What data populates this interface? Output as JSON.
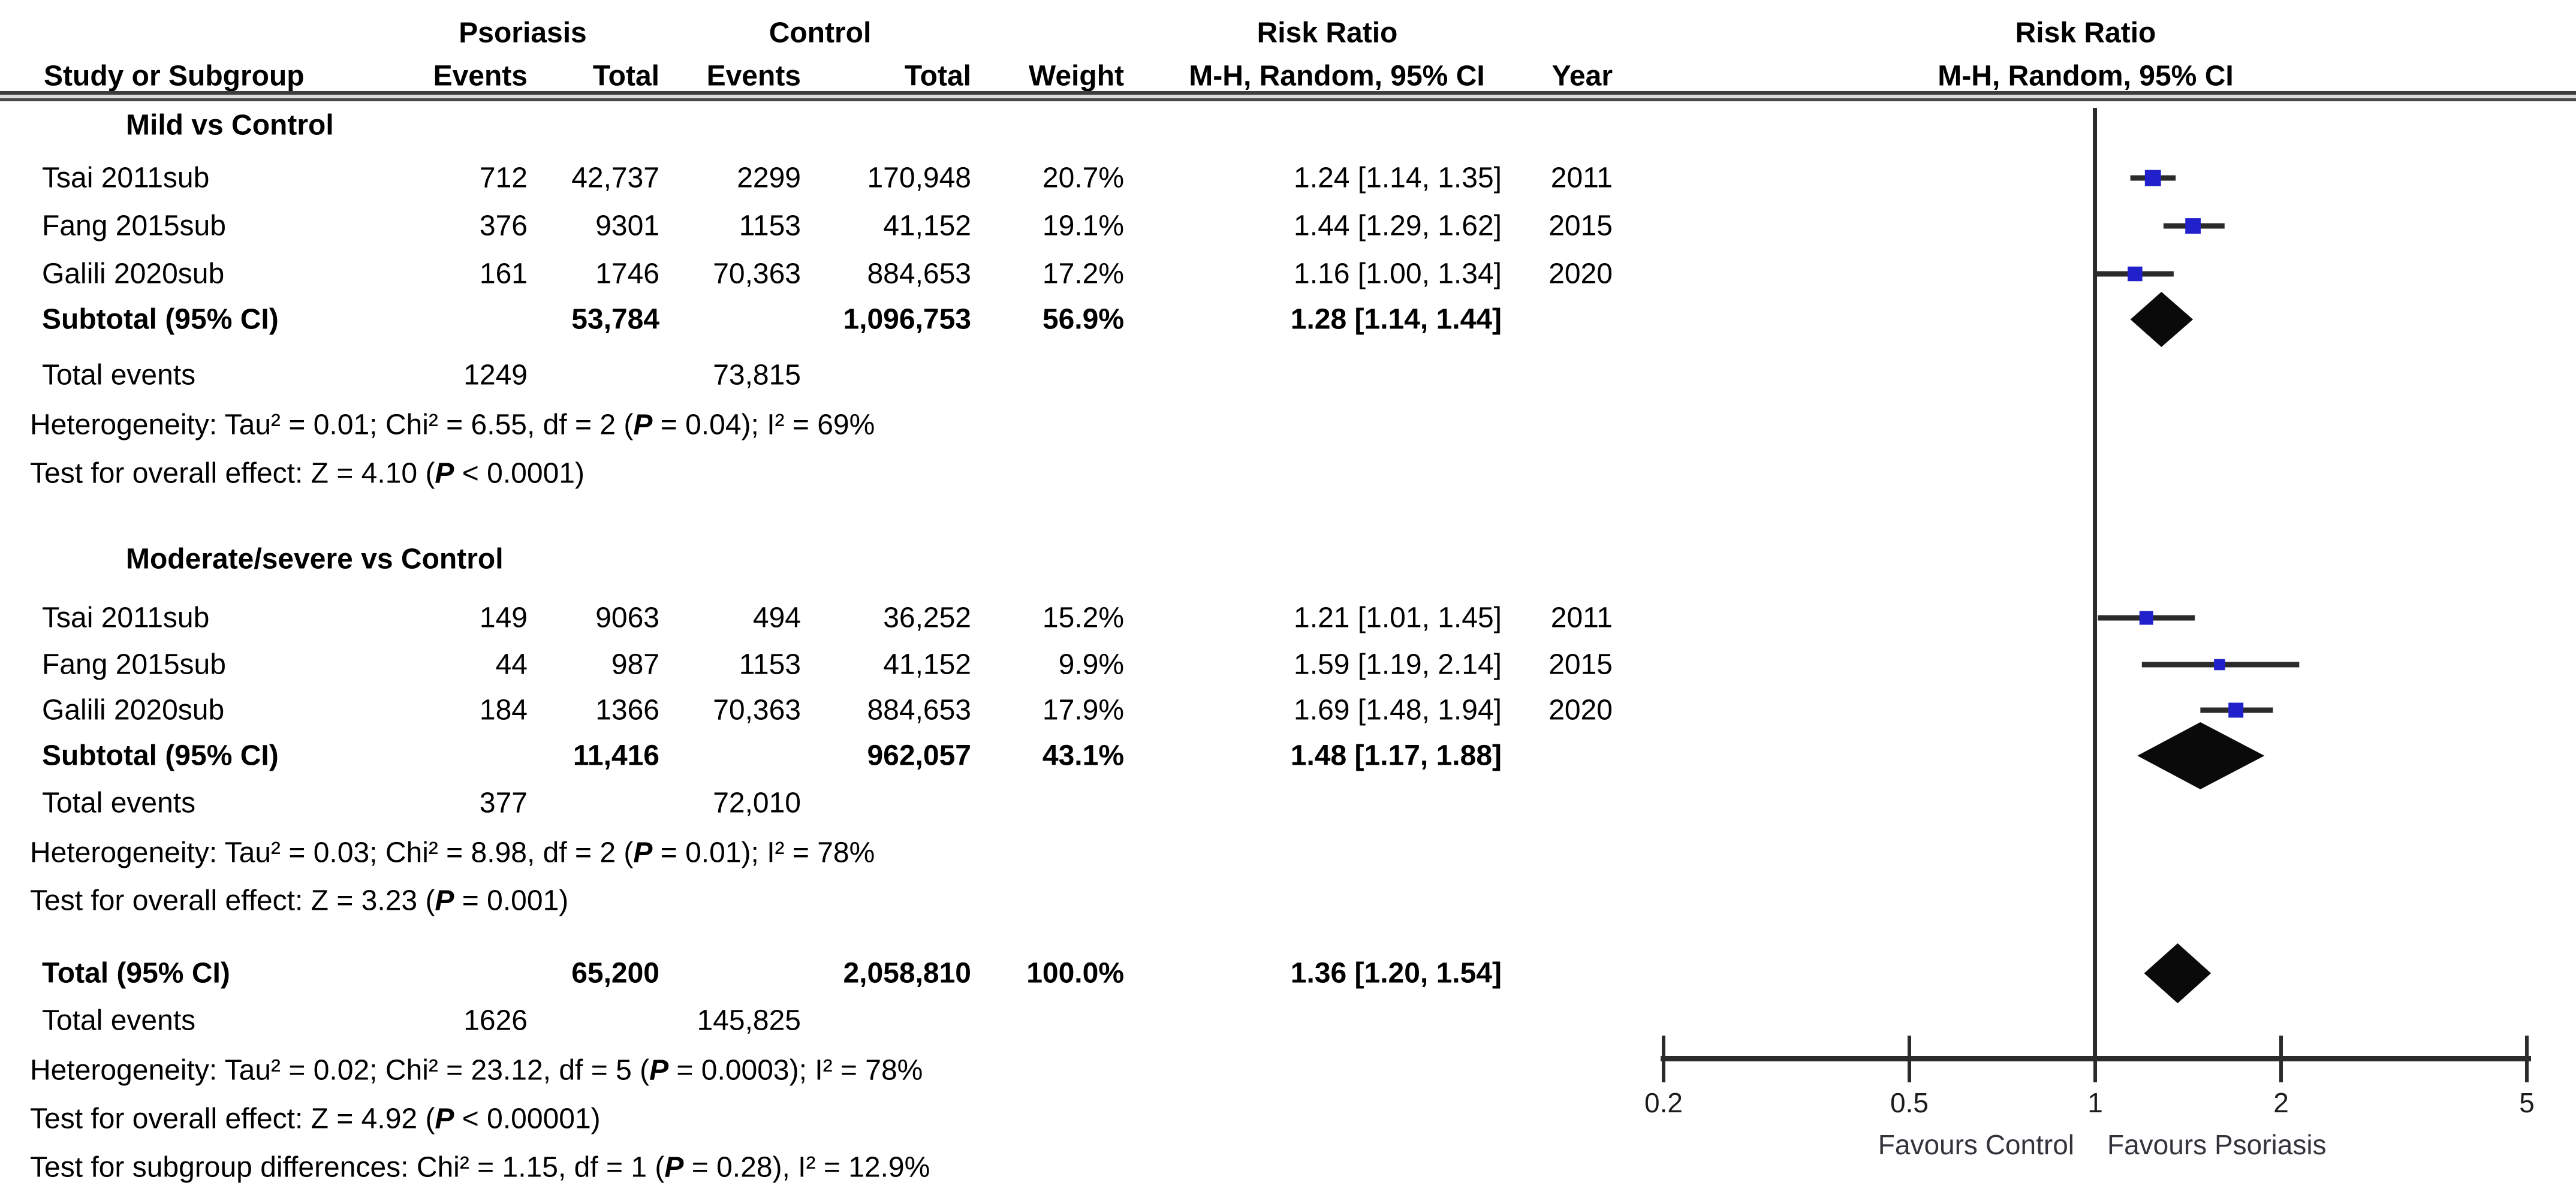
{
  "header": {
    "group1_label": "Psoriasis",
    "group2_label": "Control",
    "effect_label_left": "Risk Ratio",
    "effect_label_right": "Risk Ratio",
    "col_study": "Study or Subgroup",
    "col_events1": "Events",
    "col_total1": "Total",
    "col_events2": "Events",
    "col_total2": "Total",
    "col_weight": "Weight",
    "col_method_left": "M-H, Random, 95% CI",
    "col_year": "Year",
    "col_method_right": "M-H, Random, 95% CI"
  },
  "groups": [
    {
      "heading": "Mild vs Control",
      "studies": [
        {
          "study": "Tsai 2011sub",
          "events1": "712",
          "total1": "42,737",
          "events2": "2299",
          "total2": "170,948",
          "weight": "20.7%",
          "ci": "1.24 [1.14, 1.35]",
          "year": "2011"
        },
        {
          "study": "Fang 2015sub",
          "events1": "376",
          "total1": "9301",
          "events2": "1153",
          "total2": "41,152",
          "weight": "19.1%",
          "ci": "1.44 [1.29, 1.62]",
          "year": "2015"
        },
        {
          "study": "Galili 2020sub",
          "events1": "161",
          "total1": "1746",
          "events2": "70,363",
          "total2": "884,653",
          "weight": "17.2%",
          "ci": "1.16 [1.00, 1.34]",
          "year": "2020"
        }
      ],
      "subtotal": {
        "label": "Subtotal (95% CI)",
        "total1": "53,784",
        "total2": "1,096,753",
        "weight": "56.9%",
        "ci": "1.28 [1.14, 1.44]"
      },
      "total_events": {
        "label": "Total events",
        "events1": "1249",
        "events2": "73,815"
      },
      "heterogeneity": {
        "pre": "Heterogeneity: Tau² = 0.01; Chi² = 6.55, df = 2 (",
        "p": "P",
        "post": " = 0.04); I² = 69%"
      },
      "overall": {
        "pre": "Test for overall effect: Z = 4.10 (",
        "p": "P",
        "post": " < 0.0001)"
      }
    },
    {
      "heading": "Moderate/severe vs Control",
      "studies": [
        {
          "study": "Tsai 2011sub",
          "events1": "149",
          "total1": "9063",
          "events2": "494",
          "total2": "36,252",
          "weight": "15.2%",
          "ci": "1.21 [1.01, 1.45]",
          "year": "2011"
        },
        {
          "study": "Fang 2015sub",
          "events1": "44",
          "total1": "987",
          "events2": "1153",
          "total2": "41,152",
          "weight": "9.9%",
          "ci": "1.59 [1.19, 2.14]",
          "year": "2015"
        },
        {
          "study": "Galili 2020sub",
          "events1": "184",
          "total1": "1366",
          "events2": "70,363",
          "total2": "884,653",
          "weight": "17.9%",
          "ci": "1.69 [1.48, 1.94]",
          "year": "2020"
        }
      ],
      "subtotal": {
        "label": "Subtotal (95% CI)",
        "total1": "11,416",
        "total2": "962,057",
        "weight": "43.1%",
        "ci": "1.48 [1.17, 1.88]"
      },
      "total_events": {
        "label": "Total events",
        "events1": "377",
        "events2": "72,010"
      },
      "heterogeneity": {
        "pre": "Heterogeneity: Tau² = 0.03; Chi² = 8.98, df = 2 (",
        "p": "P",
        "post": " = 0.01); I² = 78%"
      },
      "overall": {
        "pre": "Test for overall effect: Z = 3.23 (",
        "p": "P",
        "post": " = 0.001)"
      }
    }
  ],
  "total": {
    "row": {
      "label": "Total (95% CI)",
      "total1": "65,200",
      "total2": "2,058,810",
      "weight": "100.0%",
      "ci": "1.36 [1.20, 1.54]"
    },
    "total_events": {
      "label": "Total events",
      "events1": "1626",
      "events2": "145,825"
    },
    "heterogeneity": {
      "pre": "Heterogeneity: Tau² = 0.02; Chi² = 23.12, df = 5 (",
      "p": "P",
      "post": " = 0.0003); I² = 78%"
    },
    "overall": {
      "pre": "Test for overall effect: Z = 4.92 (",
      "p": "P",
      "post": " < 0.00001)"
    },
    "subgroup_diff": {
      "pre": "Test for subgroup differences: Chi² = 1.15, df = 1 (",
      "p": "P",
      "post": " = 0.28), I² = 12.9%"
    }
  },
  "chart_data": {
    "type": "forest",
    "x_scale": "log",
    "xlim": [
      0.2,
      5
    ],
    "null_line": 1,
    "axis_ticks": [
      "0.2",
      "0.5",
      "1",
      "2",
      "5"
    ],
    "favours_left": "Favours Control",
    "favours_right": "Favours Psoriasis",
    "effect_measure": "Risk Ratio",
    "method": "M-H, Random, 95% CI",
    "marker_color": "#2121cc",
    "line_color": "#2b2b2b",
    "diamond_color": "#0a0a0a",
    "groups": [
      {
        "name": "Mild vs Control",
        "studies": [
          {
            "label": "Tsai 2011sub",
            "rr": 1.24,
            "ci_low": 1.14,
            "ci_high": 1.35,
            "weight_pct": 20.7
          },
          {
            "label": "Fang 2015sub",
            "rr": 1.44,
            "ci_low": 1.29,
            "ci_high": 1.62,
            "weight_pct": 19.1
          },
          {
            "label": "Galili 2020sub",
            "rr": 1.16,
            "ci_low": 1.0,
            "ci_high": 1.34,
            "weight_pct": 17.2
          }
        ],
        "subtotal": {
          "rr": 1.28,
          "ci_low": 1.14,
          "ci_high": 1.44,
          "weight_pct": 56.9
        }
      },
      {
        "name": "Moderate/severe vs Control",
        "studies": [
          {
            "label": "Tsai 2011sub",
            "rr": 1.21,
            "ci_low": 1.01,
            "ci_high": 1.45,
            "weight_pct": 15.2
          },
          {
            "label": "Fang 2015sub",
            "rr": 1.59,
            "ci_low": 1.19,
            "ci_high": 2.14,
            "weight_pct": 9.9
          },
          {
            "label": "Galili 2020sub",
            "rr": 1.69,
            "ci_low": 1.48,
            "ci_high": 1.94,
            "weight_pct": 17.9
          }
        ],
        "subtotal": {
          "rr": 1.48,
          "ci_low": 1.17,
          "ci_high": 1.88,
          "weight_pct": 43.1
        }
      }
    ],
    "overall": {
      "rr": 1.36,
      "ci_low": 1.2,
      "ci_high": 1.54,
      "weight_pct": 100.0
    }
  }
}
